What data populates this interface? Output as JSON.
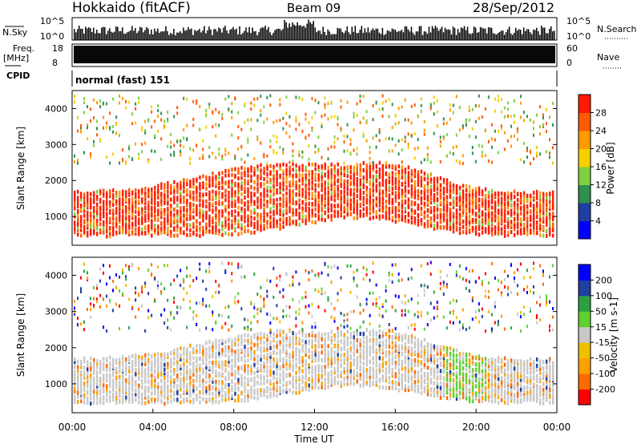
{
  "header": {
    "station": "Hokkaido (fitACF)",
    "beam": "Beam 09",
    "date": "28/Sep/2012"
  },
  "small_panels": {
    "nsky_label": "N.Sky",
    "nsearch_label": "N.Search",
    "freq_label_line1": "Freq.",
    "freq_label_line2": "[MHz]",
    "nave_label": "Nave",
    "cpid_label": "CPID",
    "cpid_text": "normal (fast) 151",
    "left_ticks_top": [
      "10^5",
      "10^0"
    ],
    "right_ticks_top": [
      "10^5",
      "10^0"
    ],
    "left_ticks_freq": [
      "18",
      "8"
    ],
    "right_ticks_nave": [
      "60",
      "0"
    ],
    "left_tick_10_5": "10^5",
    "left_tick_10_0": "10^0"
  },
  "chart_data": [
    {
      "type": "heatmap",
      "title": "",
      "ylabel": "Slant Range [km]",
      "xlabel": "Time UT",
      "quantity": "Power",
      "colorbar_label": "Power [dB]",
      "colorbar_ticks": [
        "28",
        "24",
        "20",
        "16",
        "12",
        "8",
        "4"
      ],
      "colorbar_colors": [
        "#0000ff",
        "#1f3fa0",
        "#2f8f4f",
        "#7fd040",
        "#f5d000",
        "#ff9a00",
        "#ff5a00",
        "#ff1a00"
      ],
      "x_range_hours": [
        0,
        24
      ],
      "ylim": [
        200,
        4500
      ],
      "y_ticks": [
        "1000",
        "2000",
        "3000",
        "4000"
      ],
      "x_ticks": [
        "00:00",
        "04:00",
        "08:00",
        "12:00",
        "16:00",
        "20:00",
        "00:00"
      ]
    },
    {
      "type": "heatmap",
      "title": "",
      "ylabel": "Slant Range [km]",
      "xlabel": "Time UT",
      "quantity": "Velocity",
      "colorbar_label": "Velocity [m s-1]",
      "colorbar_ticks": [
        "200",
        "100",
        "50",
        "15",
        "-15",
        "-50",
        "-100",
        "-200"
      ],
      "colorbar_colors": [
        "#ff0000",
        "#ff6a00",
        "#ffa000",
        "#f0c000",
        "#c8c8c8",
        "#60d030",
        "#2aa040",
        "#1f3fa0",
        "#0000ff"
      ],
      "x_range_hours": [
        0,
        24
      ],
      "ylim": [
        200,
        4500
      ],
      "y_ticks": [
        "1000",
        "2000",
        "3000",
        "4000"
      ],
      "x_ticks": [
        "00:00",
        "04:00",
        "08:00",
        "12:00",
        "16:00",
        "20:00",
        "00:00"
      ]
    }
  ],
  "axis": {
    "time_label": "Time UT"
  }
}
